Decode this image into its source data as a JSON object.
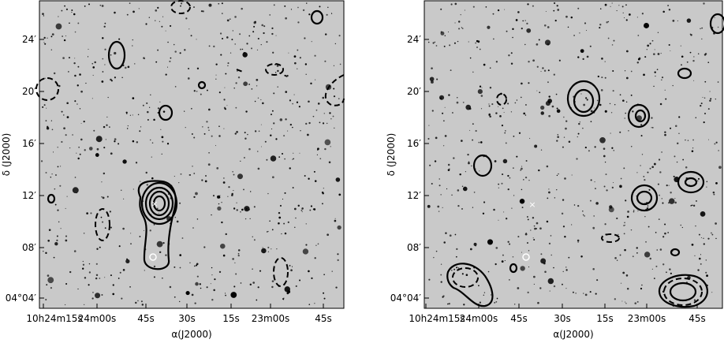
{
  "panels": [
    {
      "yticks": [
        "24′",
        "20′",
        "16′",
        "12′",
        "08′",
        "04°04′"
      ],
      "xticks": [
        "10h24m15s",
        "24m00s",
        "45s",
        "30s",
        "15s",
        "23m00s",
        "45s"
      ],
      "xlabel": "α(J2000)",
      "ylabel": "δ (J2000)"
    },
    {
      "yticks": [
        "24′",
        "20′",
        "16′",
        "12′",
        "08′",
        "04°04′"
      ],
      "xticks": [
        "10h24m15s",
        "24m00s",
        "45s",
        "30s",
        "15s",
        "23m00s",
        "45s"
      ],
      "xlabel": "α(J2000)",
      "ylabel": "δ (J2000)"
    }
  ]
}
